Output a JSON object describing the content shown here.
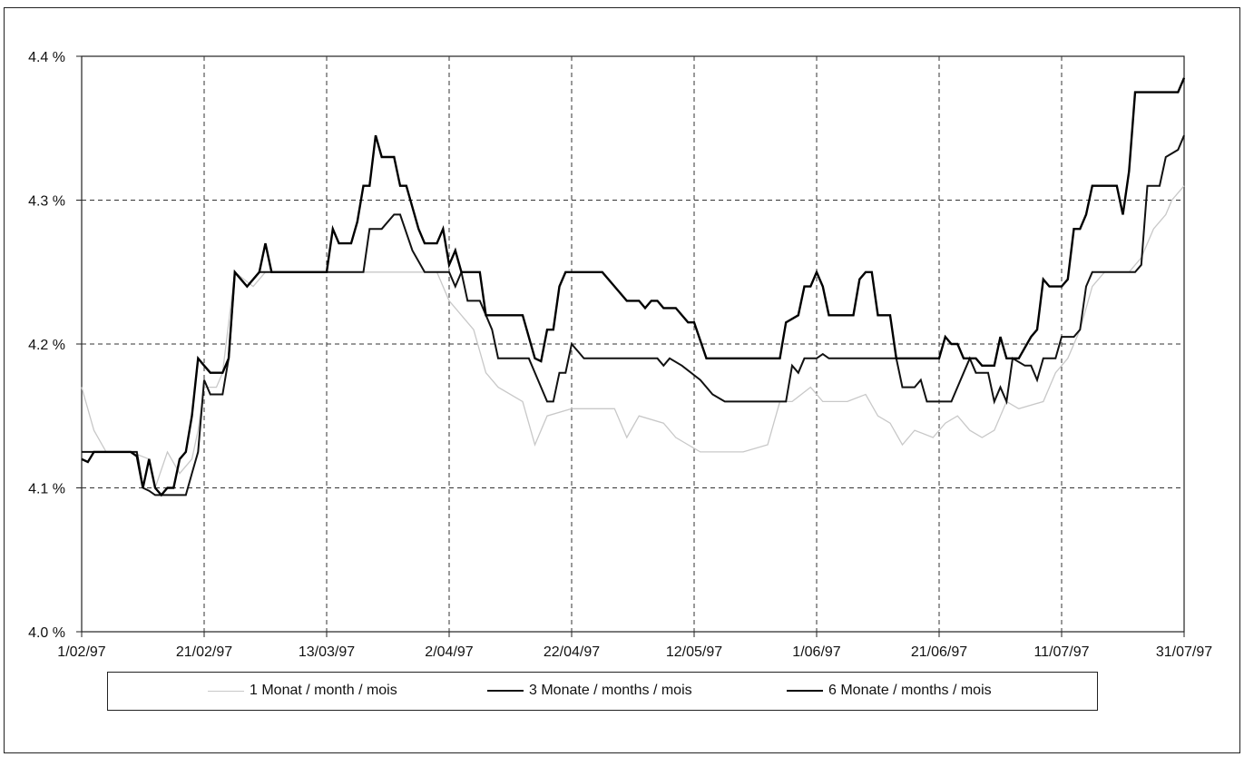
{
  "chart_data": {
    "type": "line",
    "title": "",
    "xlabel": "",
    "ylabel": "",
    "ylim": [
      4.0,
      4.4
    ],
    "xlim": [
      "1/02/97",
      "31/07/97"
    ],
    "y_ticks": [
      "4.0 %",
      "4.1 %",
      "4.2 %",
      "4.3 %",
      "4.4 %"
    ],
    "x_ticks": [
      "1/02/97",
      "21/02/97",
      "13/03/97",
      "2/04/97",
      "22/04/97",
      "12/05/97",
      "1/06/97",
      "21/06/97",
      "11/07/97",
      "31/07/97"
    ],
    "grid": true,
    "legend_position": "bottom",
    "series": [
      {
        "name": "1 Monat / month / mois",
        "color": "#c8c8c8",
        "points": [
          [
            "1/02/97",
            4.17
          ],
          [
            "3/02/97",
            4.14
          ],
          [
            "5/02/97",
            4.125
          ],
          [
            "9/02/97",
            4.125
          ],
          [
            "12/02/97",
            4.12
          ],
          [
            "13/02/97",
            4.1
          ],
          [
            "15/02/97",
            4.125
          ],
          [
            "17/02/97",
            4.11
          ],
          [
            "19/02/97",
            4.12
          ],
          [
            "20/02/97",
            4.14
          ],
          [
            "21/02/97",
            4.17
          ],
          [
            "23/02/97",
            4.17
          ],
          [
            "24/02/97",
            4.18
          ],
          [
            "26/02/97",
            4.25
          ],
          [
            "1/03/97",
            4.24
          ],
          [
            "3/03/97",
            4.25
          ],
          [
            "13/03/97",
            4.25
          ],
          [
            "19/03/97",
            4.25
          ],
          [
            "25/03/97",
            4.25
          ],
          [
            "31/03/97",
            4.25
          ],
          [
            "2/04/97",
            4.23
          ],
          [
            "6/04/97",
            4.21
          ],
          [
            "8/04/97",
            4.18
          ],
          [
            "10/04/97",
            4.17
          ],
          [
            "14/04/97",
            4.16
          ],
          [
            "16/04/97",
            4.13
          ],
          [
            "18/04/97",
            4.15
          ],
          [
            "22/04/97",
            4.155
          ],
          [
            "29/04/97",
            4.155
          ],
          [
            "1/05/97",
            4.135
          ],
          [
            "3/05/97",
            4.15
          ],
          [
            "7/05/97",
            4.145
          ],
          [
            "9/05/97",
            4.135
          ],
          [
            "11/05/97",
            4.13
          ],
          [
            "13/05/97",
            4.125
          ],
          [
            "20/05/97",
            4.125
          ],
          [
            "24/05/97",
            4.13
          ],
          [
            "26/05/97",
            4.16
          ],
          [
            "28/05/97",
            4.16
          ],
          [
            "31/05/97",
            4.17
          ],
          [
            "2/06/97",
            4.16
          ],
          [
            "6/06/97",
            4.16
          ],
          [
            "9/06/97",
            4.165
          ],
          [
            "11/06/97",
            4.15
          ],
          [
            "13/06/97",
            4.145
          ],
          [
            "15/06/97",
            4.13
          ],
          [
            "17/06/97",
            4.14
          ],
          [
            "20/06/97",
            4.135
          ],
          [
            "22/06/97",
            4.145
          ],
          [
            "24/06/97",
            4.15
          ],
          [
            "26/06/97",
            4.14
          ],
          [
            "28/06/97",
            4.135
          ],
          [
            "30/06/97",
            4.14
          ],
          [
            "2/07/97",
            4.16
          ],
          [
            "4/07/97",
            4.155
          ],
          [
            "8/07/97",
            4.16
          ],
          [
            "10/07/97",
            4.18
          ],
          [
            "12/07/97",
            4.19
          ],
          [
            "14/07/97",
            4.21
          ],
          [
            "16/07/97",
            4.24
          ],
          [
            "18/07/97",
            4.25
          ],
          [
            "22/07/97",
            4.25
          ],
          [
            "24/07/97",
            4.26
          ],
          [
            "26/07/97",
            4.28
          ],
          [
            "28/07/97",
            4.29
          ],
          [
            "29/07/97",
            4.3
          ],
          [
            "31/07/97",
            4.31
          ]
        ]
      },
      {
        "name": "3 Monate / months / mois",
        "color": "#111111",
        "points": [
          [
            "1/02/97",
            4.125
          ],
          [
            "10/02/97",
            4.125
          ],
          [
            "11/02/97",
            4.1
          ],
          [
            "12/02/97",
            4.098
          ],
          [
            "13/02/97",
            4.095
          ],
          [
            "18/02/97",
            4.095
          ],
          [
            "19/02/97",
            4.11
          ],
          [
            "20/02/97",
            4.125
          ],
          [
            "21/02/97",
            4.175
          ],
          [
            "22/02/97",
            4.165
          ],
          [
            "24/02/97",
            4.165
          ],
          [
            "25/02/97",
            4.19
          ],
          [
            "26/02/97",
            4.25
          ],
          [
            "27/02/97",
            4.245
          ],
          [
            "28/02/97",
            4.24
          ],
          [
            "2/03/97",
            4.25
          ],
          [
            "19/03/97",
            4.25
          ],
          [
            "20/03/97",
            4.28
          ],
          [
            "22/03/97",
            4.28
          ],
          [
            "24/03/97",
            4.29
          ],
          [
            "25/03/97",
            4.29
          ],
          [
            "27/03/97",
            4.265
          ],
          [
            "29/03/97",
            4.25
          ],
          [
            "2/04/97",
            4.25
          ],
          [
            "3/04/97",
            4.24
          ],
          [
            "4/04/97",
            4.25
          ],
          [
            "5/04/97",
            4.23
          ],
          [
            "7/04/97",
            4.23
          ],
          [
            "9/04/97",
            4.21
          ],
          [
            "10/04/97",
            4.19
          ],
          [
            "15/04/97",
            4.19
          ],
          [
            "17/04/97",
            4.17
          ],
          [
            "18/04/97",
            4.16
          ],
          [
            "19/04/97",
            4.16
          ],
          [
            "20/04/97",
            4.18
          ],
          [
            "21/04/97",
            4.18
          ],
          [
            "22/04/97",
            4.2
          ],
          [
            "23/04/97",
            4.195
          ],
          [
            "24/04/97",
            4.19
          ],
          [
            "6/05/97",
            4.19
          ],
          [
            "7/05/97",
            4.185
          ],
          [
            "8/05/97",
            4.19
          ],
          [
            "10/05/97",
            4.185
          ],
          [
            "13/05/97",
            4.175
          ],
          [
            "15/05/97",
            4.165
          ],
          [
            "17/05/97",
            4.16
          ],
          [
            "21/05/97",
            4.16
          ],
          [
            "27/05/97",
            4.16
          ],
          [
            "28/05/97",
            4.185
          ],
          [
            "29/05/97",
            4.18
          ],
          [
            "30/05/97",
            4.19
          ],
          [
            "1/06/97",
            4.19
          ],
          [
            "2/06/97",
            4.193
          ],
          [
            "3/06/97",
            4.19
          ],
          [
            "14/06/97",
            4.19
          ],
          [
            "15/06/97",
            4.17
          ],
          [
            "17/06/97",
            4.17
          ],
          [
            "18/06/97",
            4.175
          ],
          [
            "19/06/97",
            4.16
          ],
          [
            "21/06/97",
            4.16
          ],
          [
            "23/06/97",
            4.16
          ],
          [
            "25/06/97",
            4.18
          ],
          [
            "26/06/97",
            4.19
          ],
          [
            "27/06/97",
            4.18
          ],
          [
            "29/06/97",
            4.18
          ],
          [
            "30/06/97",
            4.16
          ],
          [
            "1/07/97",
            4.17
          ],
          [
            "2/07/97",
            4.16
          ],
          [
            "3/07/97",
            4.19
          ],
          [
            "5/07/97",
            4.185
          ],
          [
            "6/07/97",
            4.185
          ],
          [
            "7/07/97",
            4.175
          ],
          [
            "8/07/97",
            4.19
          ],
          [
            "10/07/97",
            4.19
          ],
          [
            "11/07/97",
            4.205
          ],
          [
            "13/07/97",
            4.205
          ],
          [
            "14/07/97",
            4.21
          ],
          [
            "15/07/97",
            4.24
          ],
          [
            "16/07/97",
            4.25
          ],
          [
            "23/07/97",
            4.25
          ],
          [
            "24/07/97",
            4.255
          ],
          [
            "25/07/97",
            4.31
          ],
          [
            "27/07/97",
            4.31
          ],
          [
            "28/07/97",
            4.33
          ],
          [
            "30/07/97",
            4.335
          ],
          [
            "31/07/97",
            4.345
          ]
        ]
      },
      {
        "name": "6 Monate / months / mois",
        "color": "#000000",
        "points": [
          [
            "1/02/97",
            4.12
          ],
          [
            "2/02/97",
            4.118
          ],
          [
            "3/02/97",
            4.125
          ],
          [
            "9/02/97",
            4.125
          ],
          [
            "10/02/97",
            4.122
          ],
          [
            "11/02/97",
            4.1
          ],
          [
            "12/02/97",
            4.12
          ],
          [
            "13/02/97",
            4.1
          ],
          [
            "14/02/97",
            4.095
          ],
          [
            "15/02/97",
            4.1
          ],
          [
            "16/02/97",
            4.1
          ],
          [
            "17/02/97",
            4.12
          ],
          [
            "18/02/97",
            4.125
          ],
          [
            "19/02/97",
            4.15
          ],
          [
            "20/02/97",
            4.19
          ],
          [
            "21/02/97",
            4.185
          ],
          [
            "22/02/97",
            4.18
          ],
          [
            "24/02/97",
            4.18
          ],
          [
            "25/02/97",
            4.19
          ],
          [
            "26/02/97",
            4.25
          ],
          [
            "27/02/97",
            4.245
          ],
          [
            "28/02/97",
            4.24
          ],
          [
            "2/03/97",
            4.25
          ],
          [
            "3/03/97",
            4.27
          ],
          [
            "4/03/97",
            4.25
          ],
          [
            "13/03/97",
            4.25
          ],
          [
            "14/03/97",
            4.28
          ],
          [
            "15/03/97",
            4.27
          ],
          [
            "17/03/97",
            4.27
          ],
          [
            "18/03/97",
            4.285
          ],
          [
            "19/03/97",
            4.31
          ],
          [
            "20/03/97",
            4.31
          ],
          [
            "21/03/97",
            4.345
          ],
          [
            "22/03/97",
            4.33
          ],
          [
            "24/03/97",
            4.33
          ],
          [
            "25/03/97",
            4.31
          ],
          [
            "26/03/97",
            4.31
          ],
          [
            "28/03/97",
            4.28
          ],
          [
            "29/03/97",
            4.27
          ],
          [
            "31/03/97",
            4.27
          ],
          [
            "1/04/97",
            4.28
          ],
          [
            "2/04/97",
            4.255
          ],
          [
            "3/04/97",
            4.265
          ],
          [
            "4/04/97",
            4.25
          ],
          [
            "7/04/97",
            4.25
          ],
          [
            "8/04/97",
            4.22
          ],
          [
            "14/04/97",
            4.22
          ],
          [
            "16/04/97",
            4.19
          ],
          [
            "17/04/97",
            4.188
          ],
          [
            "18/04/97",
            4.21
          ],
          [
            "19/04/97",
            4.21
          ],
          [
            "20/04/97",
            4.24
          ],
          [
            "21/04/97",
            4.25
          ],
          [
            "27/04/97",
            4.25
          ],
          [
            "29/04/97",
            4.24
          ],
          [
            "1/05/97",
            4.23
          ],
          [
            "3/05/97",
            4.23
          ],
          [
            "4/05/97",
            4.225
          ],
          [
            "5/05/97",
            4.23
          ],
          [
            "6/05/97",
            4.23
          ],
          [
            "7/05/97",
            4.225
          ],
          [
            "9/05/97",
            4.225
          ],
          [
            "11/05/97",
            4.215
          ],
          [
            "12/05/97",
            4.215
          ],
          [
            "14/05/97",
            4.19
          ],
          [
            "15/05/97",
            4.19
          ],
          [
            "26/05/97",
            4.19
          ],
          [
            "27/05/97",
            4.215
          ],
          [
            "29/05/97",
            4.22
          ],
          [
            "30/05/97",
            4.24
          ],
          [
            "31/05/97",
            4.24
          ],
          [
            "1/06/97",
            4.25
          ],
          [
            "2/06/97",
            4.24
          ],
          [
            "3/06/97",
            4.22
          ],
          [
            "7/06/97",
            4.22
          ],
          [
            "8/06/97",
            4.245
          ],
          [
            "9/06/97",
            4.25
          ],
          [
            "10/06/97",
            4.25
          ],
          [
            "11/06/97",
            4.22
          ],
          [
            "13/06/97",
            4.22
          ],
          [
            "14/06/97",
            4.19
          ],
          [
            "15/06/97",
            4.19
          ],
          [
            "20/06/97",
            4.19
          ],
          [
            "21/06/97",
            4.19
          ],
          [
            "22/06/97",
            4.205
          ],
          [
            "23/06/97",
            4.2
          ],
          [
            "24/06/97",
            4.2
          ],
          [
            "25/06/97",
            4.19
          ],
          [
            "27/06/97",
            4.19
          ],
          [
            "28/06/97",
            4.185
          ],
          [
            "30/06/97",
            4.185
          ],
          [
            "1/07/97",
            4.205
          ],
          [
            "2/07/97",
            4.19
          ],
          [
            "4/07/97",
            4.19
          ],
          [
            "6/07/97",
            4.205
          ],
          [
            "7/07/97",
            4.21
          ],
          [
            "8/07/97",
            4.245
          ],
          [
            "9/07/97",
            4.24
          ],
          [
            "11/07/97",
            4.24
          ],
          [
            "12/07/97",
            4.245
          ],
          [
            "13/07/97",
            4.28
          ],
          [
            "14/07/97",
            4.28
          ],
          [
            "15/07/97",
            4.29
          ],
          [
            "16/07/97",
            4.31
          ],
          [
            "20/07/97",
            4.31
          ],
          [
            "21/07/97",
            4.29
          ],
          [
            "22/07/97",
            4.32
          ],
          [
            "23/07/97",
            4.375
          ],
          [
            "29/07/97",
            4.375
          ],
          [
            "30/07/97",
            4.375
          ],
          [
            "31/07/97",
            4.385
          ]
        ]
      }
    ]
  }
}
